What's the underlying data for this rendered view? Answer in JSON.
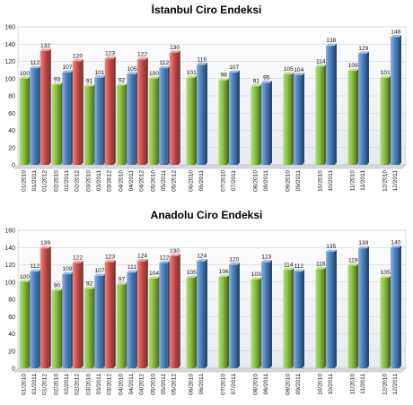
{
  "chart_data": [
    {
      "type": "bar",
      "title": "İstanbul Ciro Endeksi",
      "ylim": [
        0,
        160
      ],
      "yticks": [
        0,
        20,
        40,
        60,
        80,
        100,
        120,
        140,
        160
      ],
      "grid": true,
      "colors": {
        "2010": "#8cc63f",
        "2011": "#4f86c6",
        "2012": "#d9534f"
      },
      "groups": [
        {
          "bars": [
            {
              "label": "01/2010",
              "year": "2010",
              "value": 100
            },
            {
              "label": "01/2011",
              "year": "2011",
              "value": 112
            },
            {
              "label": "01/2012",
              "year": "2012",
              "value": 132
            }
          ]
        },
        {
          "bars": [
            {
              "label": "02/2010",
              "year": "2010",
              "value": 93
            },
            {
              "label": "02/2011",
              "year": "2011",
              "value": 107
            },
            {
              "label": "02/2012",
              "year": "2012",
              "value": 120
            }
          ]
        },
        {
          "bars": [
            {
              "label": "03/2010",
              "year": "2010",
              "value": 91
            },
            {
              "label": "03/2011",
              "year": "2011",
              "value": 101
            },
            {
              "label": "03/2012",
              "year": "2012",
              "value": 123
            }
          ]
        },
        {
          "bars": [
            {
              "label": "04/2010",
              "year": "2010",
              "value": 92
            },
            {
              "label": "04/2011",
              "year": "2011",
              "value": 105
            },
            {
              "label": "04/2012",
              "year": "2012",
              "value": 122
            }
          ]
        },
        {
          "bars": [
            {
              "label": "05/2010",
              "year": "2010",
              "value": 100
            },
            {
              "label": "05/2011",
              "year": "2011",
              "value": 112
            },
            {
              "label": "05/2012",
              "year": "2012",
              "value": 130
            }
          ]
        },
        {
          "bars": [
            {
              "label": "06/2010",
              "year": "2010",
              "value": 101
            },
            {
              "label": "06/2011",
              "year": "2011",
              "value": 116
            }
          ]
        },
        {
          "bars": [
            {
              "label": "07/2010",
              "year": "2010",
              "value": 98
            },
            {
              "label": "07/2011",
              "year": "2011",
              "value": 107
            }
          ]
        },
        {
          "bars": [
            {
              "label": "08/2010",
              "year": "2010",
              "value": 91
            },
            {
              "label": "08/2011",
              "year": "2011",
              "value": 95
            }
          ]
        },
        {
          "bars": [
            {
              "label": "09/2010",
              "year": "2010",
              "value": 105
            },
            {
              "label": "09/2011",
              "year": "2011",
              "value": 104
            }
          ]
        },
        {
          "bars": [
            {
              "label": "10/2010",
              "year": "2010",
              "value": 114
            },
            {
              "label": "10/2011",
              "year": "2011",
              "value": 138
            }
          ]
        },
        {
          "bars": [
            {
              "label": "11/2010",
              "year": "2010",
              "value": 109
            },
            {
              "label": "11/2011",
              "year": "2011",
              "value": 129
            }
          ]
        },
        {
          "bars": [
            {
              "label": "12/2010",
              "year": "2010",
              "value": 101
            },
            {
              "label": "12/2011",
              "year": "2011",
              "value": 148
            }
          ]
        }
      ]
    },
    {
      "type": "bar",
      "title": "Anadolu Ciro Endeksi",
      "ylim": [
        0,
        160
      ],
      "yticks": [
        0,
        20,
        40,
        60,
        80,
        100,
        120,
        140,
        160
      ],
      "grid": true,
      "colors": {
        "2010": "#8cc63f",
        "2011": "#4f86c6",
        "2012": "#d9534f"
      },
      "groups": [
        {
          "bars": [
            {
              "label": "01/2010",
              "year": "2010",
              "value": 100
            },
            {
              "label": "01/2011",
              "year": "2011",
              "value": 112
            },
            {
              "label": "01/2012",
              "year": "2012",
              "value": 139
            }
          ]
        },
        {
          "bars": [
            {
              "label": "02/2010",
              "year": "2010",
              "value": 90
            },
            {
              "label": "02/2011",
              "year": "2011",
              "value": 109
            },
            {
              "label": "02/2012",
              "year": "2012",
              "value": 122
            }
          ]
        },
        {
          "bars": [
            {
              "label": "03/2010",
              "year": "2010",
              "value": 92
            },
            {
              "label": "03/2011",
              "year": "2011",
              "value": 107
            },
            {
              "label": "03/2012",
              "year": "2012",
              "value": 123
            }
          ]
        },
        {
          "bars": [
            {
              "label": "04/2010",
              "year": "2010",
              "value": 97
            },
            {
              "label": "04/2011",
              "year": "2011",
              "value": 111
            },
            {
              "label": "04/2012",
              "year": "2012",
              "value": 124
            }
          ]
        },
        {
          "bars": [
            {
              "label": "05/2010",
              "year": "2010",
              "value": 104
            },
            {
              "label": "05/2011",
              "year": "2011",
              "value": 122
            },
            {
              "label": "05/2012",
              "year": "2012",
              "value": 130
            }
          ]
        },
        {
          "bars": [
            {
              "label": "06/2010",
              "year": "2010",
              "value": 105
            },
            {
              "label": "06/2011",
              "year": "2011",
              "value": 124
            }
          ]
        },
        {
          "bars": [
            {
              "label": "07/2010",
              "year": "2010",
              "value": 106
            },
            {
              "label": "07/2011",
              "year": "2011",
              "value": 120
            }
          ]
        },
        {
          "bars": [
            {
              "label": "08/2010",
              "year": "2010",
              "value": 103
            },
            {
              "label": "08/2011",
              "year": "2011",
              "value": 123
            }
          ]
        },
        {
          "bars": [
            {
              "label": "09/2010",
              "year": "2010",
              "value": 114
            },
            {
              "label": "09/2011",
              "year": "2011",
              "value": 112
            }
          ]
        },
        {
          "bars": [
            {
              "label": "10/2010",
              "year": "2010",
              "value": 115
            },
            {
              "label": "10/2011",
              "year": "2011",
              "value": 135
            }
          ]
        },
        {
          "bars": [
            {
              "label": "11/2010",
              "year": "2010",
              "value": 119
            },
            {
              "label": "11/2011",
              "year": "2011",
              "value": 139
            }
          ]
        },
        {
          "bars": [
            {
              "label": "12/2010",
              "year": "2010",
              "value": 105
            },
            {
              "label": "12/2011",
              "year": "2011",
              "value": 140
            }
          ]
        }
      ]
    }
  ]
}
